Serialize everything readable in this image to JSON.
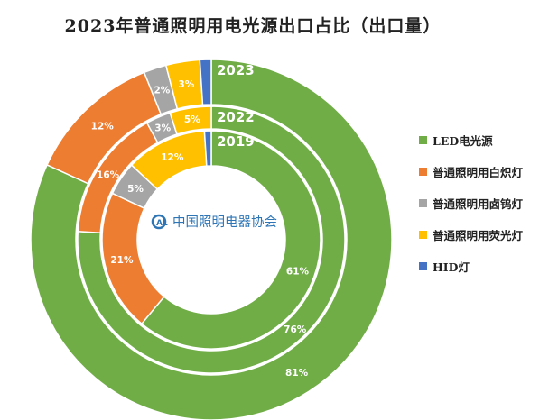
{
  "chart_data": {
    "type": "donut",
    "title": "2023年普通照明用电光源出口占比（出口量）",
    "watermark": "中国照明电器协会",
    "categories": [
      "LED电光源",
      "普通照明用白炽灯",
      "普通照明用卤钨灯",
      "普通照明用荧光灯",
      "HID灯"
    ],
    "colors": [
      "#70ad47",
      "#ed7d31",
      "#a5a5a5",
      "#ffc000",
      "#4472c4"
    ],
    "series": [
      {
        "name": "2019",
        "values": [
          61,
          21,
          5,
          12,
          1
        ],
        "labels": [
          "61%",
          "21%",
          "5%",
          "12%",
          ""
        ]
      },
      {
        "name": "2022",
        "values": [
          76,
          16,
          3,
          5,
          0
        ],
        "labels": [
          "76%",
          "16%",
          "3%",
          "5%",
          ""
        ]
      },
      {
        "name": "2023",
        "values": [
          81,
          12,
          2,
          3,
          1
        ],
        "labels": [
          "81%",
          "12%",
          "2%",
          "3%",
          ""
        ]
      }
    ],
    "legend_position": "right"
  }
}
